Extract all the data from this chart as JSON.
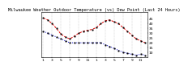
{
  "title": "Milwaukee Weather Outdoor Temperature (vs) Dew Point (Last 24 Hours)",
  "temp_values": [
    46,
    44,
    40,
    35,
    29,
    26,
    24,
    27,
    30,
    32,
    33,
    34,
    36,
    40,
    43,
    44,
    42,
    40,
    36,
    32,
    28,
    24,
    22,
    20
  ],
  "dew_values": [
    32,
    30,
    28,
    26,
    24,
    22,
    20,
    20,
    20,
    20,
    20,
    20,
    20,
    20,
    18,
    16,
    14,
    12,
    10,
    9,
    8,
    7,
    8,
    7
  ],
  "x_values": [
    0,
    1,
    2,
    3,
    4,
    5,
    6,
    7,
    8,
    9,
    10,
    11,
    12,
    13,
    14,
    15,
    16,
    17,
    18,
    19,
    20,
    21,
    22,
    23
  ],
  "x_tick_positions": [
    0,
    2,
    4,
    6,
    8,
    10,
    12,
    14,
    16,
    18,
    20,
    22
  ],
  "x_tick_labels": [
    "1",
    "3",
    "5",
    "7",
    "9",
    "11",
    "1",
    "3",
    "5",
    "7",
    "9",
    "11"
  ],
  "ytick_positions": [
    10,
    15,
    20,
    25,
    30,
    35,
    40,
    45
  ],
  "ytick_labels": [
    "10",
    "15",
    "20",
    "25",
    "30",
    "35",
    "40",
    "45"
  ],
  "ylim": [
    5,
    52
  ],
  "xlim": [
    -0.5,
    23.5
  ],
  "temp_color": "#dd0000",
  "dew_color": "#0000cc",
  "marker_color": "#000000",
  "bg_color": "#ffffff",
  "grid_color": "#999999",
  "title_fontsize": 3.8,
  "tick_fontsize": 3.2,
  "line_width": 0.7,
  "marker_size": 1.0
}
